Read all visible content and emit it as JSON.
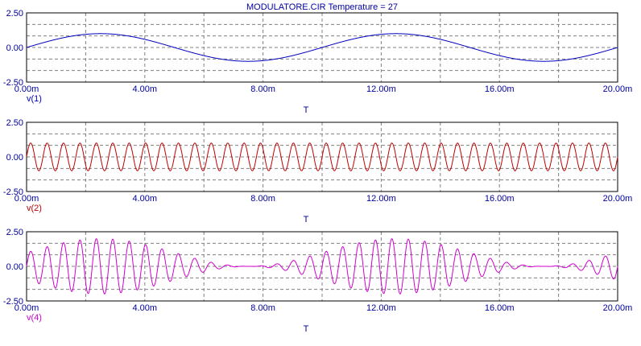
{
  "title": "MODULATORE.CIR Temperature = 27",
  "colors": {
    "text": "#0000a0",
    "frame": "#000000",
    "grid": "#808080"
  },
  "chart_data": [
    {
      "type": "line",
      "series": [
        {
          "name": "v(1)",
          "color": "#0000c0",
          "signal": "sine",
          "amplitude": 1.0,
          "frequency_hz": 100,
          "phase_deg": 0
        }
      ],
      "xlabel": "T",
      "ylabel": "",
      "xlim": [
        0,
        0.02
      ],
      "ylim": [
        -2.5,
        2.5
      ],
      "x_ticks": [
        0,
        0.004,
        0.008,
        0.012,
        0.016,
        0.02
      ],
      "x_tick_labels": [
        "0.00m",
        "4.00m",
        "8.00m",
        "12.00m",
        "16.00m",
        "20.00m"
      ],
      "y_ticks": [
        2.5,
        0,
        -2.5
      ],
      "y_tick_labels": [
        "2.50",
        "0.00",
        "-2.50"
      ],
      "grid": true
    },
    {
      "type": "line",
      "series": [
        {
          "name": "v(2)",
          "color": "#c00000",
          "signal": "sine",
          "amplitude": 1.0,
          "frequency_hz": 1800,
          "phase_deg": 0
        }
      ],
      "xlabel": "T",
      "ylabel": "",
      "xlim": [
        0,
        0.02
      ],
      "ylim": [
        -2.5,
        2.5
      ],
      "x_ticks": [
        0,
        0.004,
        0.008,
        0.012,
        0.016,
        0.02
      ],
      "x_tick_labels": [
        "0.00m",
        "4.00m",
        "8.00m",
        "12.00m",
        "16.00m",
        "20.00m"
      ],
      "y_ticks": [
        2.5,
        0,
        -2.5
      ],
      "y_tick_labels": [
        "2.50",
        "0.00",
        "-2.50"
      ],
      "grid": true
    },
    {
      "type": "line",
      "series": [
        {
          "name": "v(4)",
          "color": "#d000d0",
          "signal": "am_product",
          "carrier_hz": 1800,
          "modulator_hz": 100,
          "amplitude": 1.0,
          "offset": 1.0
        }
      ],
      "xlabel": "T",
      "ylabel": "",
      "xlim": [
        0,
        0.02
      ],
      "ylim": [
        -2.5,
        2.5
      ],
      "x_ticks": [
        0,
        0.004,
        0.008,
        0.012,
        0.016,
        0.02
      ],
      "x_tick_labels": [
        "0.00m",
        "4.00m",
        "8.00m",
        "12.00m",
        "16.00m",
        "20.00m"
      ],
      "y_ticks": [
        2.5,
        0,
        -2.5
      ],
      "y_tick_labels": [
        "2.50",
        "0.00",
        "-2.50"
      ],
      "grid": true
    }
  ]
}
